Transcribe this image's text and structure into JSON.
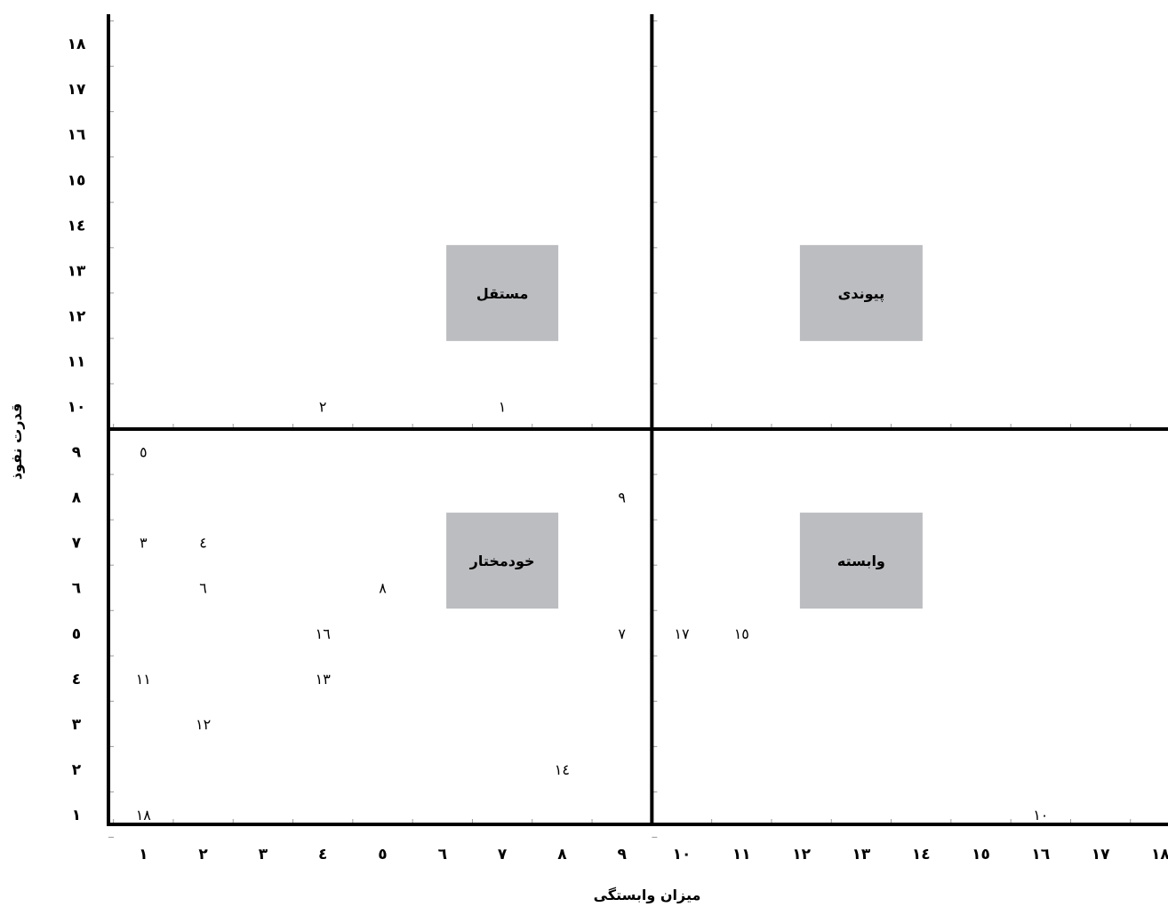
{
  "chart_data": {
    "type": "scatter",
    "title": "",
    "xlabel": "میزان وابستگی",
    "ylabel": "قدرت نفوذ",
    "xlim": [
      0.5,
      18.5
    ],
    "ylim": [
      0.5,
      18.5
    ],
    "x_ticks": [
      "۱",
      "۲",
      "۳",
      "٤",
      "٥",
      "٦",
      "٧",
      "٨",
      "٩",
      "۱۰",
      "۱۱",
      "۱۲",
      "۱۳",
      "۱٤",
      "۱٥",
      "۱٦",
      "۱٧",
      "۱۸"
    ],
    "y_ticks": [
      "۱",
      "۲",
      "۳",
      "٤",
      "٥",
      "٦",
      "٧",
      "٨",
      "٩",
      "۱۰",
      "۱۱",
      "۱۲",
      "۱۳",
      "۱٤",
      "۱٥",
      "۱٦",
      "۱٧",
      "۱۸"
    ],
    "divider": {
      "x": 9.5,
      "y": 9.5
    },
    "quadrants": [
      {
        "name": "مستقل",
        "x": 7,
        "y": 12.5
      },
      {
        "name": "پیوندی",
        "x": 13,
        "y": 12.5
      },
      {
        "name": "خودمختار",
        "x": 7,
        "y": 6.6
      },
      {
        "name": "وابسته",
        "x": 13,
        "y": 6.6
      }
    ],
    "points": [
      {
        "label": "۱",
        "x": 7,
        "y": 10
      },
      {
        "label": "۲",
        "x": 4,
        "y": 10
      },
      {
        "label": "۳",
        "x": 1,
        "y": 7
      },
      {
        "label": "٤",
        "x": 2,
        "y": 7
      },
      {
        "label": "٥",
        "x": 1,
        "y": 9
      },
      {
        "label": "٦",
        "x": 2,
        "y": 6
      },
      {
        "label": "٧",
        "x": 9,
        "y": 5
      },
      {
        "label": "٨",
        "x": 5,
        "y": 6
      },
      {
        "label": "٩",
        "x": 9,
        "y": 8
      },
      {
        "label": "۱۰",
        "x": 16,
        "y": 1
      },
      {
        "label": "۱۱",
        "x": 1,
        "y": 4
      },
      {
        "label": "۱۲",
        "x": 2,
        "y": 3
      },
      {
        "label": "۱۳",
        "x": 4,
        "y": 4
      },
      {
        "label": "۱٤",
        "x": 8,
        "y": 2
      },
      {
        "label": "۱٥",
        "x": 11,
        "y": 5
      },
      {
        "label": "۱٦",
        "x": 4,
        "y": 5
      },
      {
        "label": "۱٧",
        "x": 10,
        "y": 5
      },
      {
        "label": "۱۸",
        "x": 1,
        "y": 1
      }
    ],
    "colors": {
      "axis": "#000000",
      "quadrant_box": "#bcbdc0",
      "tick_marks": "#9a9a9a"
    },
    "grid": false
  }
}
